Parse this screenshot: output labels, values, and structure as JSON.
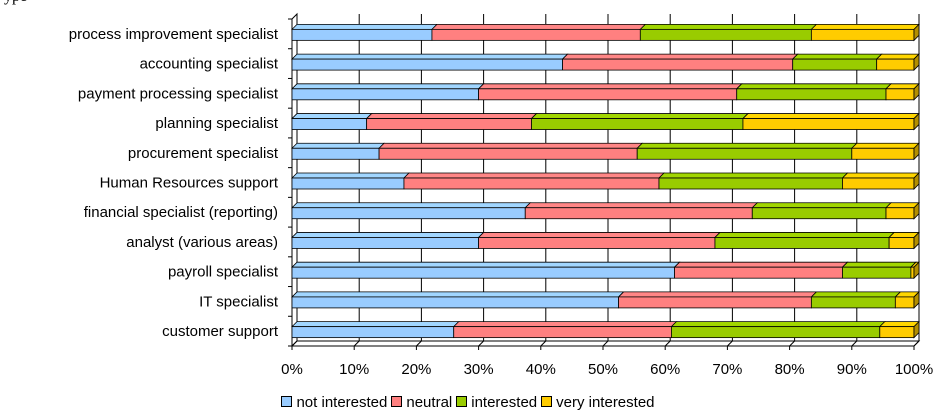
{
  "title": "ype",
  "chart_data": {
    "type": "bar",
    "orientation": "horizontal",
    "stacked": "percent",
    "categories": [
      "process improvement specialist",
      "accounting specialist",
      "payment processing specialist",
      "planning specialist",
      "procurement specialist",
      "Human Resources support",
      "financial specialist (reporting)",
      "analyst (various areas)",
      "payroll specialist",
      "IT specialist",
      "customer support"
    ],
    "series": [
      {
        "name": "not interested",
        "color": "#99CCFF",
        "values": [
          22.5,
          43.5,
          30.0,
          12.0,
          14.0,
          18.0,
          37.5,
          30.0,
          61.5,
          52.5,
          26.0
        ]
      },
      {
        "name": "neutral",
        "color": "#FF8080",
        "values": [
          33.5,
          37.0,
          41.5,
          26.5,
          41.5,
          41.0,
          36.5,
          38.0,
          27.0,
          31.0,
          35.0
        ]
      },
      {
        "name": "interested",
        "color": "#99CC00",
        "values": [
          27.5,
          13.5,
          24.0,
          34.0,
          34.5,
          29.5,
          21.5,
          28.0,
          11.0,
          13.5,
          33.5
        ]
      },
      {
        "name": "very interested",
        "color": "#FFCC00",
        "values": [
          16.5,
          6.0,
          4.5,
          27.5,
          10.0,
          11.5,
          4.5,
          4.0,
          0.5,
          3.0,
          5.5
        ]
      }
    ],
    "x_ticks": [
      "0%",
      "10%",
      "20%",
      "30%",
      "40%",
      "50%",
      "60%",
      "70%",
      "80%",
      "90%",
      "100%"
    ],
    "xlim": [
      0,
      100
    ],
    "grid": true,
    "legend_position": "bottom",
    "style": "3d"
  }
}
